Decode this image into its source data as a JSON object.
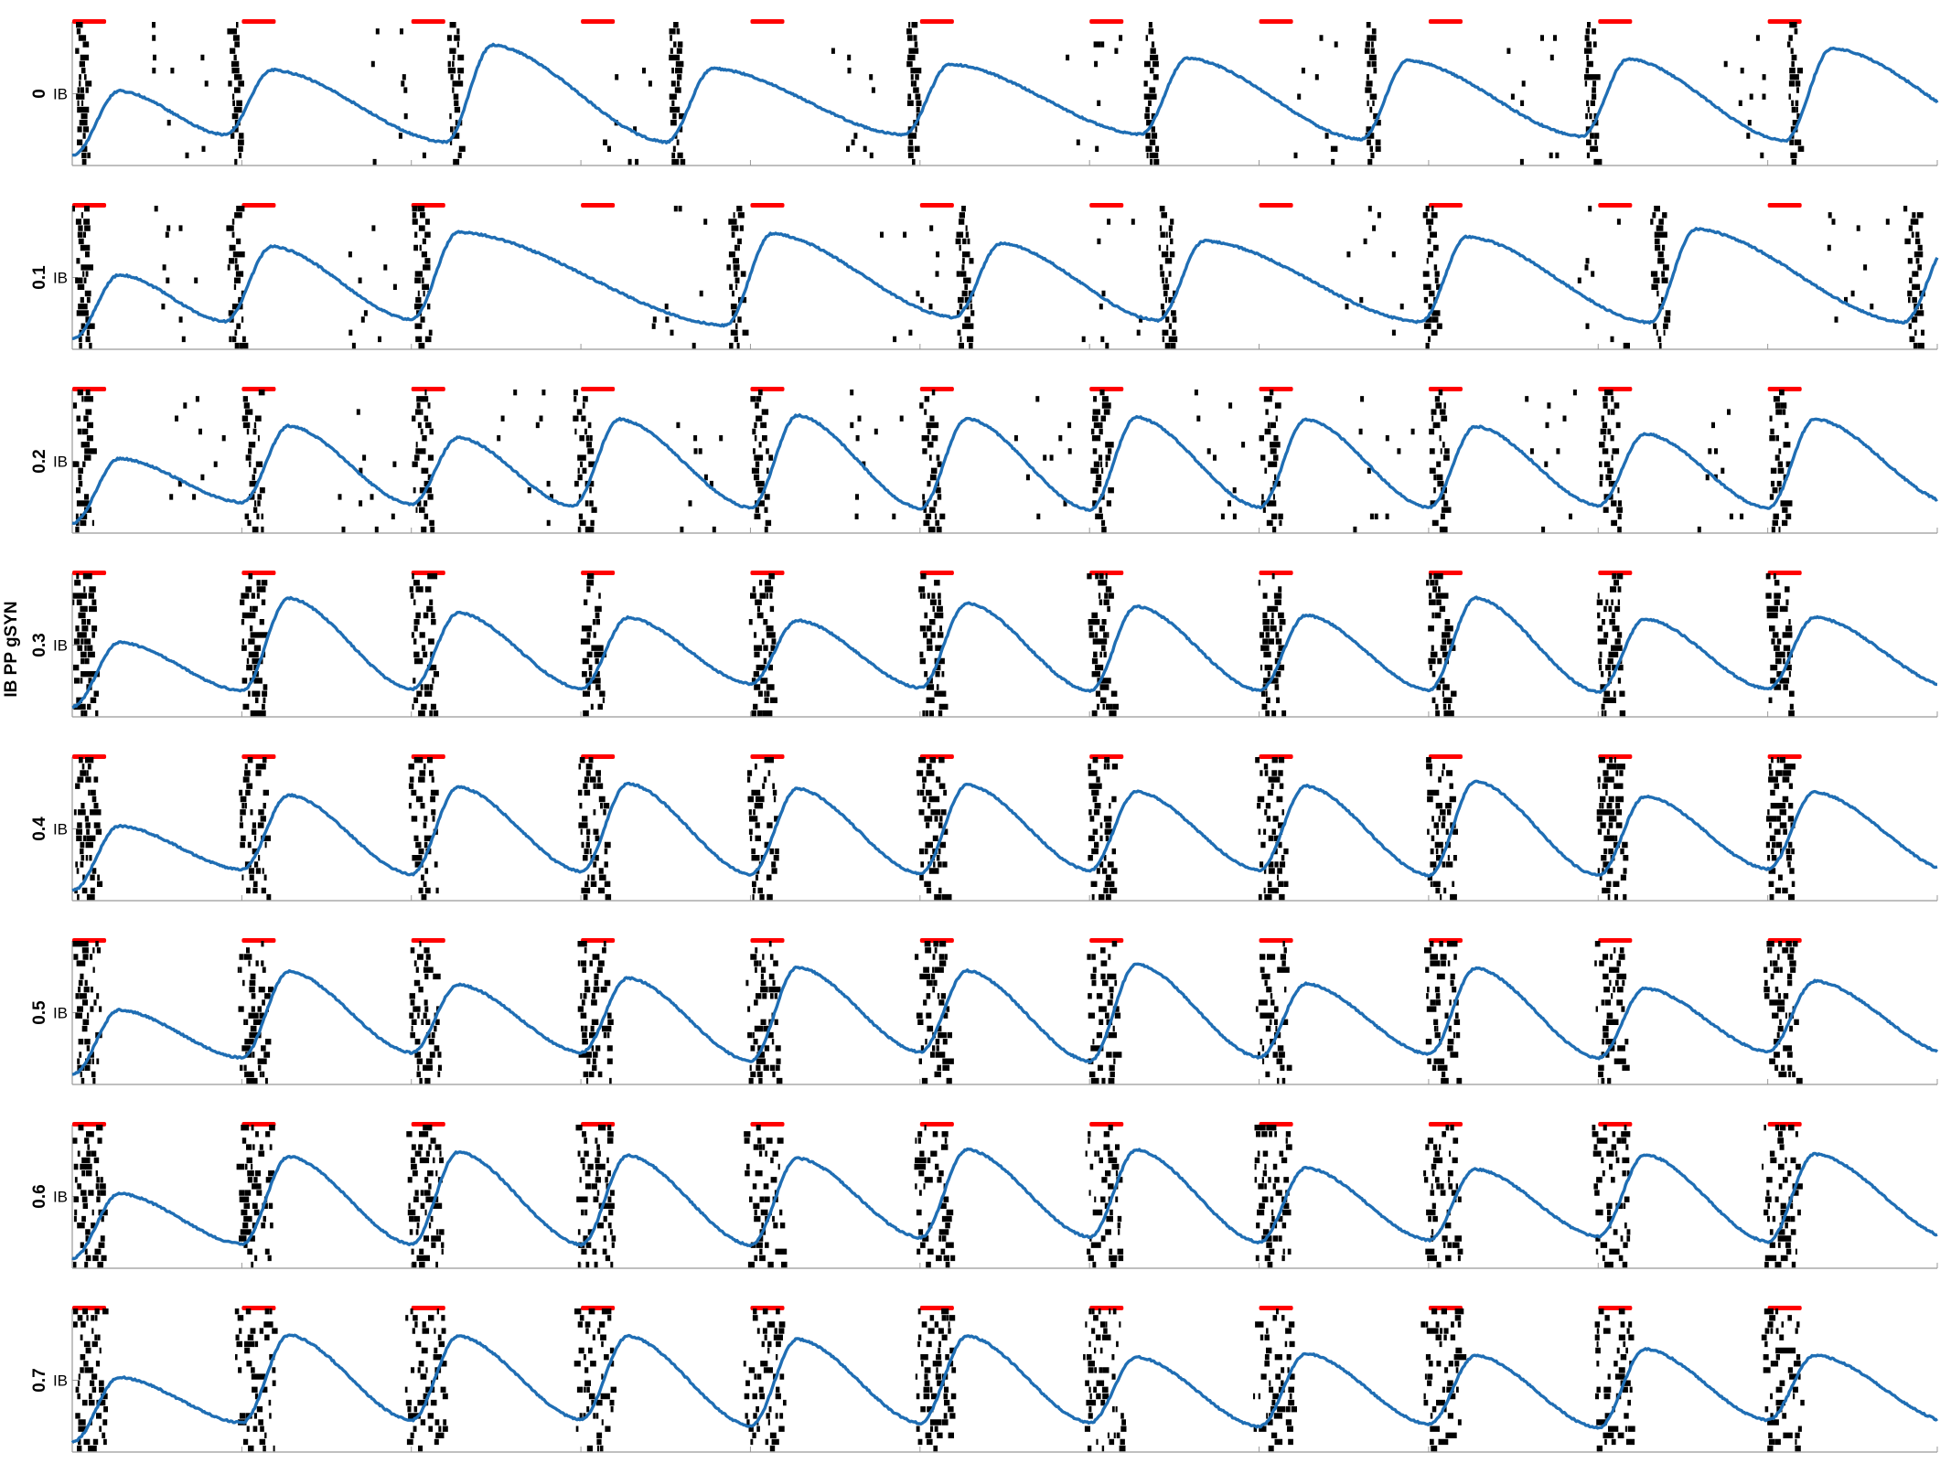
{
  "figure": {
    "ylabel": "IB PP gSYN",
    "tick_label": "IB"
  },
  "colors": {
    "trace": "#1f6eb4",
    "raster": "#000000",
    "stim": "#ff0000",
    "axis": "#999999"
  },
  "chart_data": {
    "type": "line",
    "xlim": [
      0,
      11
    ],
    "ylim": [
      0,
      1
    ],
    "stim_onsets": [
      0,
      1,
      2,
      3,
      4,
      5,
      6,
      7,
      8,
      9,
      10
    ],
    "stim_width": 0.2,
    "panels": [
      {
        "label": "0",
        "cycles": [
          0,
          0.9,
          2.2,
          3.5,
          4.9,
          6.3,
          7.6,
          8.9,
          10.1,
          11.5
        ]
      },
      {
        "label": "0.1",
        "cycles": [
          0,
          0.9,
          2.0,
          3.85,
          5.2,
          6.4,
          7.95,
          9.3,
          10.8
        ]
      },
      {
        "label": "0.2",
        "cycles": [
          0,
          1.0,
          2.0,
          2.95,
          4.0,
          5.0,
          6.0,
          7.0,
          8.0,
          9.0,
          10.0
        ]
      },
      {
        "label": "0.3",
        "cycles": [
          0,
          1.0,
          2.0,
          3.0,
          4.0,
          5.0,
          6.0,
          7.0,
          8.0,
          9.0,
          10.0
        ]
      },
      {
        "label": "0.4",
        "cycles": [
          0,
          1.0,
          2.0,
          3.0,
          4.0,
          5.0,
          6.0,
          7.0,
          8.0,
          9.0,
          10.0
        ]
      },
      {
        "label": "0.5",
        "cycles": [
          0,
          1.0,
          2.0,
          3.0,
          4.0,
          5.0,
          6.0,
          7.0,
          8.0,
          9.0,
          10.0
        ]
      },
      {
        "label": "0.6",
        "cycles": [
          0,
          1.0,
          2.0,
          3.0,
          4.0,
          5.0,
          6.0,
          7.0,
          8.0,
          9.0,
          10.0
        ]
      },
      {
        "label": "0.7",
        "cycles": [
          0,
          1.0,
          2.0,
          3.0,
          4.0,
          5.0,
          6.0,
          7.0,
          8.0,
          9.0,
          10.0
        ]
      }
    ]
  }
}
